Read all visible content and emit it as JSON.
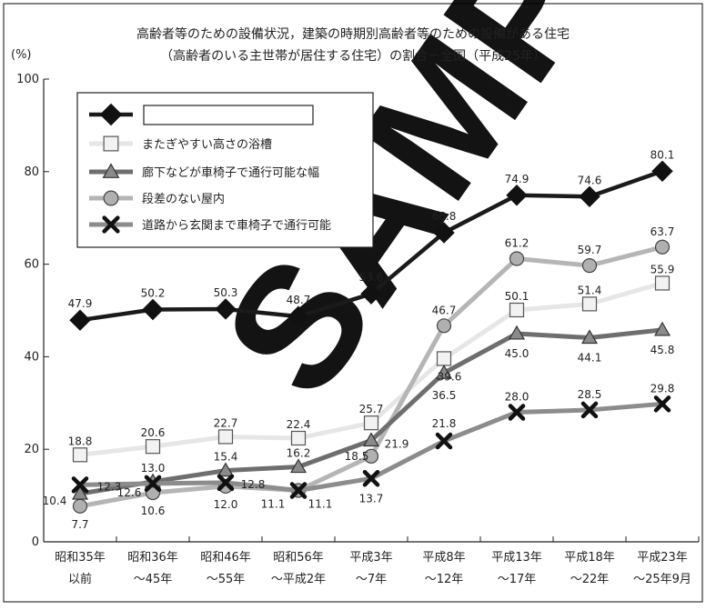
{
  "chart_data": {
    "type": "line",
    "title_line1": "高齢者等のための設備状況，建築の時期別高齢者等のための設備がある住宅",
    "title_line2": "（高齢者のいる主世帯が居住する住宅）の割合－全国（平成25年）",
    "ylabel": "(%)",
    "ylim": [
      0,
      100
    ],
    "yticks": [
      0,
      20,
      40,
      60,
      80,
      100
    ],
    "grid": false,
    "legend_position": "top-left",
    "categories": [
      [
        "昭和35年",
        "以前"
      ],
      [
        "昭和36年",
        "～45年"
      ],
      [
        "昭和46年",
        "～55年"
      ],
      [
        "昭和56年",
        "～平成2年"
      ],
      [
        "平成3年",
        "～7年"
      ],
      [
        "平成8年",
        "～12年"
      ],
      [
        "平成13年",
        "～17年"
      ],
      [
        "平成18年",
        "～22年"
      ],
      [
        "平成23年",
        "～25年9月"
      ]
    ],
    "series": [
      {
        "name": "",
        "marker": "diamond",
        "color": "#1a1a1a",
        "values": [
          47.9,
          50.2,
          50.3,
          48.7,
          53.6,
          66.8,
          74.9,
          74.6,
          80.1
        ],
        "labels": [
          "47.9",
          "50.2",
          "50.3",
          "48.7",
          "53.6",
          "66.8",
          "74.9",
          "74.6",
          "80.1"
        ]
      },
      {
        "name": "またぎやすい高さの浴槽",
        "marker": "square",
        "color": "#e6e6e6",
        "values": [
          18.8,
          20.6,
          22.7,
          22.4,
          25.7,
          39.6,
          50.1,
          51.4,
          55.9
        ],
        "labels": [
          "18.8",
          "20.6",
          "22.7",
          "22.4",
          "25.7",
          "39.6",
          "50.1",
          "51.4",
          "55.9"
        ]
      },
      {
        "name": "廊下などが車椅子で通行可能な幅",
        "marker": "triangle",
        "color": "#6e6e6e",
        "values": [
          10.4,
          13.0,
          15.4,
          16.2,
          21.9,
          36.5,
          45.0,
          44.1,
          45.8
        ],
        "labels": [
          "10.4",
          "13.0",
          "15.4",
          "16.2",
          "21.9",
          "36.5",
          "45.0",
          "44.1",
          "45.8"
        ]
      },
      {
        "name": "段差のない屋内",
        "marker": "circle",
        "color": "#b5b5b5",
        "values": [
          7.7,
          10.6,
          12.0,
          11.1,
          18.5,
          46.7,
          61.2,
          59.7,
          63.7
        ],
        "labels": [
          "7.7",
          "10.6",
          "12.0",
          "11.1",
          "18.5",
          "46.7",
          "61.2",
          "59.7",
          "63.7"
        ]
      },
      {
        "name": "道路から玄関まで車椅子で通行可能",
        "marker": "x",
        "color": "#8c8c8c",
        "values": [
          12.3,
          12.6,
          12.8,
          11.1,
          13.7,
          21.8,
          28.0,
          28.5,
          29.8
        ],
        "labels": [
          "12.3",
          "12.6",
          "12.8",
          "11.1",
          "13.7",
          "21.8",
          "28.0",
          "28.5",
          "29.8"
        ]
      }
    ]
  }
}
